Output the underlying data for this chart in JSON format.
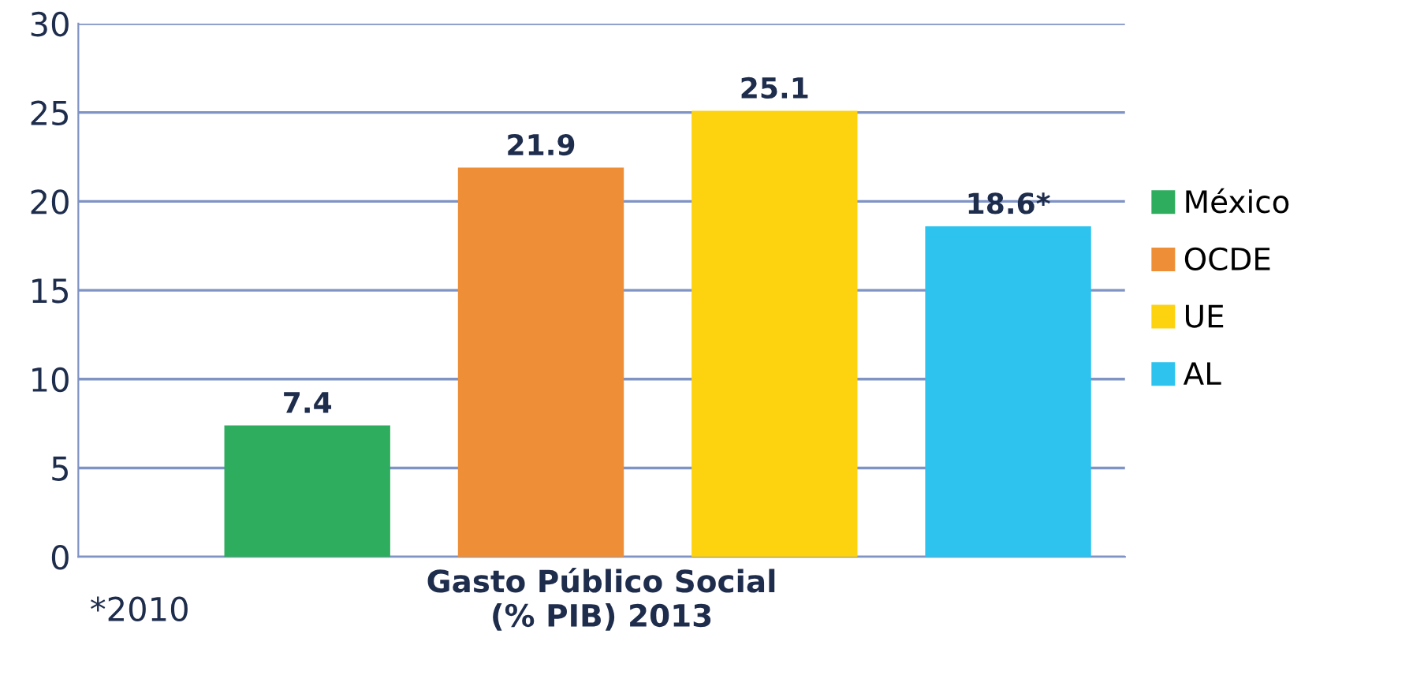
{
  "chart_data": {
    "type": "bar",
    "xlabel": "Gasto Público Social\n(% PIB) 2013",
    "categories": [
      null,
      null,
      null,
      null
    ],
    "series": [
      {
        "name": "México",
        "color": "#2fad5e",
        "values": [
          7.4,
          null,
          null,
          null
        ],
        "value_labels": [
          "7.4",
          null,
          null,
          null
        ]
      },
      {
        "name": "OCDE",
        "color": "#ee8f38",
        "values": [
          null,
          21.9,
          null,
          null
        ],
        "value_labels": [
          null,
          "21.9",
          null,
          null
        ]
      },
      {
        "name": "UE",
        "color": "#fdd20e",
        "values": [
          null,
          null,
          25.1,
          null
        ],
        "value_labels": [
          null,
          null,
          "25.1",
          null
        ]
      },
      {
        "name": "AL",
        "color": "#2ec3ef",
        "values": [
          null,
          null,
          null,
          18.6
        ],
        "value_labels": [
          null,
          null,
          null,
          "18.6*"
        ]
      }
    ],
    "ylim": [
      0,
      30
    ],
    "yticks": [
      0,
      5,
      10,
      15,
      20,
      25,
      30
    ],
    "grid": "y",
    "legend": "right",
    "annotations": [
      "*2010"
    ]
  }
}
